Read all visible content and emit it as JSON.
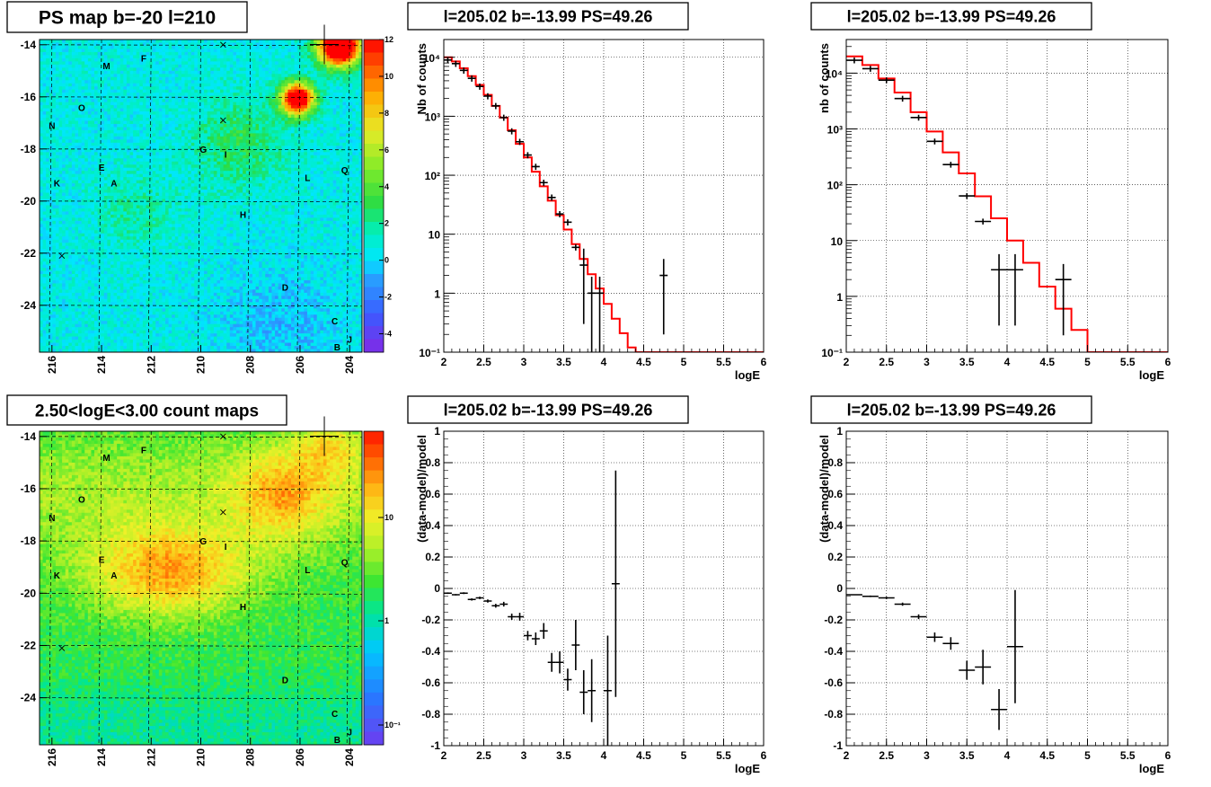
{
  "colors": {
    "model_line": "#ff0000",
    "data_points": "#000000",
    "grid": "#000000"
  },
  "chart_data": [
    {
      "type": "heatmap",
      "title": "PS map b=-20 l=210",
      "xlabel": "",
      "ylabel": "",
      "xlim": [
        203.5,
        216.5
      ],
      "ylim": [
        -25.8,
        -13.8
      ],
      "xticks": [
        "216",
        "214",
        "212",
        "210",
        "208",
        "206",
        "204"
      ],
      "yticks": [
        "-14",
        "-16",
        "-18",
        "-20",
        "-22",
        "-24"
      ],
      "colorbar": {
        "min": -5,
        "max": 12,
        "ticks": [
          "12",
          "10",
          "8",
          "6",
          "4",
          "2",
          "0",
          "-2",
          "-4"
        ],
        "scale": "linear"
      },
      "markers": [
        {
          "label": "M",
          "l": 213.8,
          "b": -14.8
        },
        {
          "label": "F",
          "l": 212.3,
          "b": -14.5
        },
        {
          "label": "O",
          "l": 214.8,
          "b": -16.4
        },
        {
          "label": "N",
          "l": 216.0,
          "b": -17.1
        },
        {
          "label": "G",
          "l": 209.9,
          "b": -18.0
        },
        {
          "label": "I",
          "l": 209.0,
          "b": -18.2
        },
        {
          "label": "E",
          "l": 214.0,
          "b": -18.7
        },
        {
          "label": "A",
          "l": 213.5,
          "b": -19.3
        },
        {
          "label": "K",
          "l": 215.8,
          "b": -19.3
        },
        {
          "label": "L",
          "l": 205.7,
          "b": -19.1
        },
        {
          "label": "Q",
          "l": 204.2,
          "b": -18.8
        },
        {
          "label": "H",
          "l": 208.3,
          "b": -20.5
        },
        {
          "label": "D",
          "l": 206.6,
          "b": -23.3
        },
        {
          "label": "C",
          "l": 204.6,
          "b": -24.6
        },
        {
          "label": "J",
          "l": 204.0,
          "b": -25.3
        },
        {
          "label": "B",
          "l": 204.5,
          "b": -25.6
        }
      ],
      "crosses": [
        {
          "l": 209.1,
          "b": -14.0
        },
        {
          "l": 209.1,
          "b": -16.9
        },
        {
          "l": 215.6,
          "b": -22.1
        }
      ],
      "sources": [
        {
          "l": 205.02,
          "b": -13.99
        }
      ]
    },
    {
      "type": "line",
      "title": "l=205.02 b=-13.99 PS=49.26",
      "xlabel": "logE",
      "ylabel": "Nb of counts",
      "xlim": [
        2,
        6
      ],
      "ylim": [
        0.1,
        20000
      ],
      "yscale": "log",
      "xticks": [
        "2",
        "2.5",
        "3",
        "3.5",
        "4",
        "4.5",
        "5",
        "5.5",
        "6"
      ],
      "yticks": [
        "10⁴",
        "10³",
        "10²",
        "10",
        "1",
        "10⁻¹"
      ],
      "grid": true,
      "model_step": {
        "name": "",
        "edges": [
          2,
          2.1,
          2.2,
          2.3,
          2.4,
          2.5,
          2.6,
          2.7,
          2.8,
          2.9,
          3.0,
          3.1,
          3.2,
          3.3,
          3.4,
          3.5,
          3.6,
          3.7,
          3.8,
          3.9,
          4.0,
          4.1,
          4.2,
          4.3,
          4.4,
          4.5,
          4.6,
          4.7,
          4.8,
          6.0
        ],
        "values": [
          10000,
          8500,
          6500,
          4800,
          3400,
          2300,
          1500,
          950,
          580,
          340,
          200,
          115,
          65,
          37,
          21,
          12,
          6.8,
          3.8,
          2.1,
          1.2,
          0.66,
          0.37,
          0.21,
          0.12,
          0.07,
          0.1,
          0.1,
          0.1,
          0.1
        ]
      },
      "points": [
        {
          "x": 2.05,
          "y": 9000
        },
        {
          "x": 2.15,
          "y": 7800
        },
        {
          "x": 2.25,
          "y": 6000
        },
        {
          "x": 2.35,
          "y": 4400
        },
        {
          "x": 2.45,
          "y": 3200
        },
        {
          "x": 2.55,
          "y": 2200
        },
        {
          "x": 2.65,
          "y": 1500
        },
        {
          "x": 2.75,
          "y": 950
        },
        {
          "x": 2.85,
          "y": 560
        },
        {
          "x": 2.95,
          "y": 370
        },
        {
          "x": 3.05,
          "y": 220
        },
        {
          "x": 3.15,
          "y": 140
        },
        {
          "x": 3.25,
          "y": 75
        },
        {
          "x": 3.35,
          "y": 42
        },
        {
          "x": 3.45,
          "y": 22
        },
        {
          "x": 3.55,
          "y": 16
        },
        {
          "x": 3.65,
          "y": 6
        },
        {
          "x": 3.75,
          "y": 3
        },
        {
          "x": 3.85,
          "y": 1
        },
        {
          "x": 3.95,
          "y": 1
        },
        {
          "x": 4.75,
          "y": 2
        }
      ]
    },
    {
      "type": "line",
      "title": "l=205.02 b=-13.99 PS=49.26",
      "xlabel": "logE",
      "ylabel": "nb of counts",
      "xlim": [
        2,
        6
      ],
      "ylim": [
        0.1,
        40000
      ],
      "yscale": "log",
      "xticks": [
        "2",
        "2.5",
        "3",
        "3.5",
        "4",
        "4.5",
        "5",
        "5.5",
        "6"
      ],
      "yticks": [
        "10⁴",
        "10³",
        "10²",
        "10",
        "1",
        "10⁻¹"
      ],
      "grid": true,
      "model_step": {
        "name": "",
        "edges": [
          2,
          2.2,
          2.4,
          2.6,
          2.8,
          3.0,
          3.2,
          3.4,
          3.6,
          3.8,
          4.0,
          4.2,
          4.4,
          4.6,
          4.8,
          5.0,
          6.0
        ],
        "values": [
          20000,
          14000,
          8000,
          4500,
          2000,
          900,
          380,
          160,
          62,
          25,
          10,
          4,
          1.5,
          0.6,
          0.25,
          0.1
        ]
      },
      "points": [
        {
          "x": 2.1,
          "y": 17000
        },
        {
          "x": 2.3,
          "y": 12000
        },
        {
          "x": 2.5,
          "y": 7500
        },
        {
          "x": 2.7,
          "y": 3500
        },
        {
          "x": 2.9,
          "y": 1600
        },
        {
          "x": 3.1,
          "y": 600
        },
        {
          "x": 3.3,
          "y": 230
        },
        {
          "x": 3.5,
          "y": 63
        },
        {
          "x": 3.7,
          "y": 22
        },
        {
          "x": 3.9,
          "y": 3
        },
        {
          "x": 4.1,
          "y": 3
        },
        {
          "x": 4.7,
          "y": 2
        }
      ]
    },
    {
      "type": "heatmap",
      "title": "2.50<logE<3.00 count maps",
      "xlabel": "",
      "ylabel": "",
      "xlim": [
        203.5,
        216.5
      ],
      "ylim": [
        -25.8,
        -13.8
      ],
      "xticks": [
        "216",
        "214",
        "212",
        "210",
        "208",
        "206",
        "204"
      ],
      "yticks": [
        "-14",
        "-16",
        "-18",
        "-20",
        "-22",
        "-24"
      ],
      "colorbar": {
        "scale": "log",
        "ticks": [
          "10",
          "1",
          "10⁻¹"
        ]
      },
      "markers": [
        {
          "label": "M",
          "l": 213.8,
          "b": -14.8
        },
        {
          "label": "F",
          "l": 212.3,
          "b": -14.5
        },
        {
          "label": "O",
          "l": 214.8,
          "b": -16.4
        },
        {
          "label": "N",
          "l": 216.0,
          "b": -17.1
        },
        {
          "label": "G",
          "l": 209.9,
          "b": -18.0
        },
        {
          "label": "I",
          "l": 209.0,
          "b": -18.2
        },
        {
          "label": "E",
          "l": 214.0,
          "b": -18.7
        },
        {
          "label": "A",
          "l": 213.5,
          "b": -19.3
        },
        {
          "label": "K",
          "l": 215.8,
          "b": -19.3
        },
        {
          "label": "L",
          "l": 205.7,
          "b": -19.1
        },
        {
          "label": "Q",
          "l": 204.2,
          "b": -18.8
        },
        {
          "label": "H",
          "l": 208.3,
          "b": -20.5
        },
        {
          "label": "D",
          "l": 206.6,
          "b": -23.3
        },
        {
          "label": "C",
          "l": 204.6,
          "b": -24.6
        },
        {
          "label": "J",
          "l": 204.0,
          "b": -25.3
        },
        {
          "label": "B",
          "l": 204.5,
          "b": -25.6
        }
      ],
      "crosses": [
        {
          "l": 209.1,
          "b": -14.0
        },
        {
          "l": 209.1,
          "b": -16.9
        },
        {
          "l": 215.6,
          "b": -22.1
        }
      ],
      "sources": [
        {
          "l": 205.02,
          "b": -13.99
        }
      ]
    },
    {
      "type": "scatter",
      "title": "l=205.02 b=-13.99 PS=49.26",
      "xlabel": "logE",
      "ylabel": "(data-model)/model",
      "xlim": [
        2,
        6
      ],
      "ylim": [
        -1,
        1
      ],
      "xticks": [
        "2",
        "2.5",
        "3",
        "3.5",
        "4",
        "4.5",
        "5",
        "5.5",
        "6"
      ],
      "yticks": [
        "1",
        "0.8",
        "0.6",
        "0.4",
        "0.2",
        "0",
        "-0.2",
        "-0.4",
        "-0.6",
        "-0.8",
        "-1"
      ],
      "grid": true,
      "points": [
        {
          "x": 2.05,
          "y": -0.03,
          "ey": 0.005
        },
        {
          "x": 2.15,
          "y": -0.04,
          "ey": 0.005
        },
        {
          "x": 2.25,
          "y": -0.03,
          "ey": 0.006
        },
        {
          "x": 2.35,
          "y": -0.07,
          "ey": 0.007
        },
        {
          "x": 2.45,
          "y": -0.06,
          "ey": 0.008
        },
        {
          "x": 2.55,
          "y": -0.08,
          "ey": 0.01
        },
        {
          "x": 2.65,
          "y": -0.11,
          "ey": 0.012
        },
        {
          "x": 2.75,
          "y": -0.1,
          "ey": 0.015
        },
        {
          "x": 2.85,
          "y": -0.18,
          "ey": 0.02
        },
        {
          "x": 2.95,
          "y": -0.18,
          "ey": 0.025
        },
        {
          "x": 3.05,
          "y": -0.3,
          "ey": 0.03
        },
        {
          "x": 3.15,
          "y": -0.32,
          "ey": 0.04
        },
        {
          "x": 3.25,
          "y": -0.27,
          "ey": 0.05
        },
        {
          "x": 3.35,
          "y": -0.47,
          "ey": 0.06
        },
        {
          "x": 3.45,
          "y": -0.47,
          "ey": 0.07
        },
        {
          "x": 3.55,
          "y": -0.58,
          "ey": 0.07
        },
        {
          "x": 3.65,
          "y": -0.36,
          "ey": 0.16
        },
        {
          "x": 3.75,
          "y": -0.66,
          "ey": 0.14
        },
        {
          "x": 3.85,
          "y": -0.65,
          "ey": 0.2
        },
        {
          "x": 4.05,
          "y": -0.65,
          "ey": 0.35
        },
        {
          "x": 4.15,
          "y": 0.03,
          "ey": 0.72
        }
      ]
    },
    {
      "type": "scatter",
      "title": "l=205.02 b=-13.99 PS=49.26",
      "xlabel": "logE",
      "ylabel": "(data-model)/model",
      "xlim": [
        2,
        6
      ],
      "ylim": [
        -1,
        1
      ],
      "xticks": [
        "2",
        "2.5",
        "3",
        "3.5",
        "4",
        "4.5",
        "5",
        "5.5",
        "6"
      ],
      "yticks": [
        "1",
        "0.8",
        "0.6",
        "0.4",
        "0.2",
        "0",
        "-0.2",
        "-0.4",
        "-0.6",
        "-0.8",
        "-1"
      ],
      "grid": true,
      "points": [
        {
          "x": 2.1,
          "y": -0.04,
          "ey": 0.004
        },
        {
          "x": 2.3,
          "y": -0.05,
          "ey": 0.005
        },
        {
          "x": 2.5,
          "y": -0.06,
          "ey": 0.007
        },
        {
          "x": 2.7,
          "y": -0.1,
          "ey": 0.01
        },
        {
          "x": 2.9,
          "y": -0.18,
          "ey": 0.015
        },
        {
          "x": 3.1,
          "y": -0.31,
          "ey": 0.03
        },
        {
          "x": 3.3,
          "y": -0.35,
          "ey": 0.04
        },
        {
          "x": 3.5,
          "y": -0.52,
          "ey": 0.06
        },
        {
          "x": 3.7,
          "y": -0.5,
          "ey": 0.11
        },
        {
          "x": 3.9,
          "y": -0.77,
          "ey": 0.13
        },
        {
          "x": 4.1,
          "y": -0.37,
          "ey": 0.36
        }
      ]
    }
  ]
}
